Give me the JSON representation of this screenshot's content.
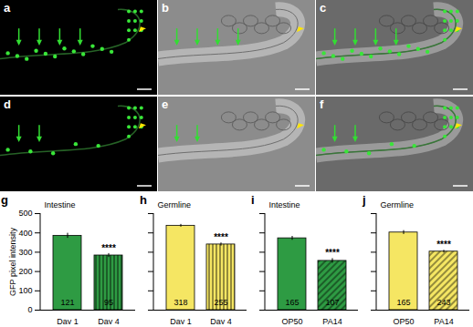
{
  "image_panels": {
    "labels": [
      "a",
      "b",
      "c",
      "d",
      "e",
      "f"
    ]
  },
  "chart_data": [
    {
      "panel": "g",
      "type": "bar",
      "title": "Intestine",
      "categories": [
        "Day 1",
        "Day 4"
      ],
      "values": [
        385,
        283
      ],
      "errors": [
        13,
        10
      ],
      "n": [
        121,
        95
      ],
      "annotations": [
        {
          "category": "Day 4",
          "text": "****"
        }
      ],
      "colors": [
        "#2e9b43",
        "#2e9b43"
      ],
      "ylabel": "GFP pixel intensity",
      "ylim": [
        0,
        500
      ],
      "yticks": [
        0,
        100,
        200,
        300,
        400,
        500
      ]
    },
    {
      "panel": "h",
      "type": "bar",
      "title": "Germline",
      "categories": [
        "Day 1",
        "Day 4"
      ],
      "values": [
        437,
        340
      ],
      "errors": [
        7,
        8
      ],
      "n": [
        318,
        255
      ],
      "annotations": [
        {
          "category": "Day 4",
          "text": "****"
        }
      ],
      "colors": [
        "#f5e663",
        "#f5e663"
      ],
      "ylim": [
        0,
        500
      ],
      "yticks": [
        0,
        100,
        200,
        300,
        400,
        500
      ],
      "tick_labels": "x"
    },
    {
      "panel": "i",
      "type": "bar",
      "title": "Intestine",
      "categories": [
        "OP50",
        "PA14"
      ],
      "values": [
        372,
        255
      ],
      "errors": [
        10,
        12
      ],
      "n": [
        165,
        107
      ],
      "annotations": [
        {
          "category": "PA14",
          "text": "****"
        }
      ],
      "colors": [
        "#2e9b43",
        "#2e9b43"
      ],
      "ylim": [
        0,
        500
      ],
      "yticks": [
        0,
        100,
        200,
        300,
        400,
        500
      ],
      "tick_labels": "x"
    },
    {
      "panel": "j",
      "type": "bar",
      "title": "Germline",
      "categories": [
        "OP50",
        "PA14"
      ],
      "values": [
        402,
        303
      ],
      "errors": [
        10,
        7
      ],
      "n": [
        165,
        243
      ],
      "annotations": [
        {
          "category": "PA14",
          "text": "****"
        }
      ],
      "colors": [
        "#f5e663",
        "#f5e663"
      ],
      "ylim": [
        0,
        500
      ],
      "yticks": [
        0,
        100,
        200,
        300,
        400,
        500
      ],
      "tick_labels": "x"
    }
  ]
}
